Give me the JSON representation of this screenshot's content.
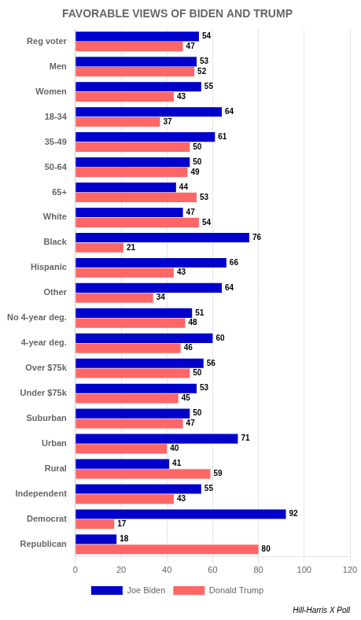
{
  "chart_data": {
    "type": "bar",
    "orientation": "horizontal",
    "title": "FAVORABLE VIEWS OF BIDEN AND TRUMP",
    "categories": [
      "Reg voter",
      "Men",
      "Women",
      "18-34",
      "35-49",
      "50-64",
      "65+",
      "White",
      "Black",
      "Hispanic",
      "Other",
      "No 4-year deg.",
      "4-year deg.",
      "Over $75k",
      "Under $75k",
      "Suburban",
      "Urban",
      "Rural",
      "Independent",
      "Democrat",
      "Republican"
    ],
    "series": [
      {
        "name": "Joe Biden",
        "color": "#0000CC",
        "values": [
          54,
          53,
          55,
          64,
          61,
          50,
          44,
          47,
          76,
          66,
          64,
          51,
          60,
          56,
          53,
          50,
          71,
          41,
          55,
          92,
          18
        ]
      },
      {
        "name": "Donald Trump",
        "color": "#FF6666",
        "values": [
          47,
          52,
          43,
          37,
          50,
          49,
          53,
          54,
          21,
          43,
          34,
          48,
          46,
          50,
          45,
          47,
          40,
          59,
          43,
          17,
          80
        ]
      }
    ],
    "xlim": [
      0,
      120
    ],
    "xticks": [
      0,
      20,
      40,
      60,
      80,
      100,
      120
    ],
    "grid": true,
    "legend": "bottom",
    "data_labels": true,
    "annotations": [
      "Hill-Harris X Poll"
    ]
  }
}
